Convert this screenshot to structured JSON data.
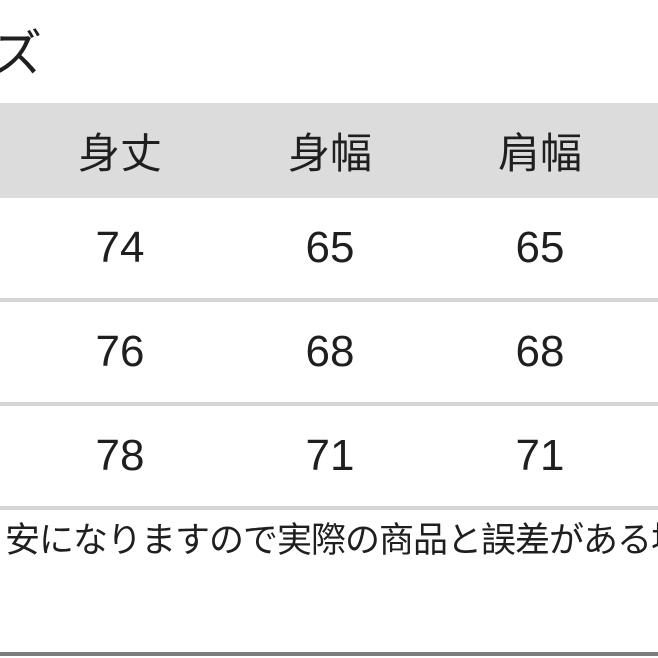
{
  "section": {
    "title_partial": "ズ"
  },
  "size_table": {
    "headers": [
      {
        "label": "身丈"
      },
      {
        "label": "身幅"
      },
      {
        "label": "肩幅"
      }
    ],
    "rows": [
      {
        "body_length": "74",
        "body_width": "65",
        "shoulder_width": "65"
      },
      {
        "body_length": "76",
        "body_width": "68",
        "shoulder_width": "68"
      },
      {
        "body_length": "78",
        "body_width": "71",
        "shoulder_width": "71"
      }
    ]
  },
  "note": {
    "text_partial": "安になりますので実際の商品と誤差がある場"
  },
  "colors": {
    "header_bg": "#dcdcdc",
    "separator": "#d5d5d5",
    "text": "#1f1f1f",
    "bottom_bar": "#7d7d7d",
    "page_bg": "#ffffff"
  }
}
